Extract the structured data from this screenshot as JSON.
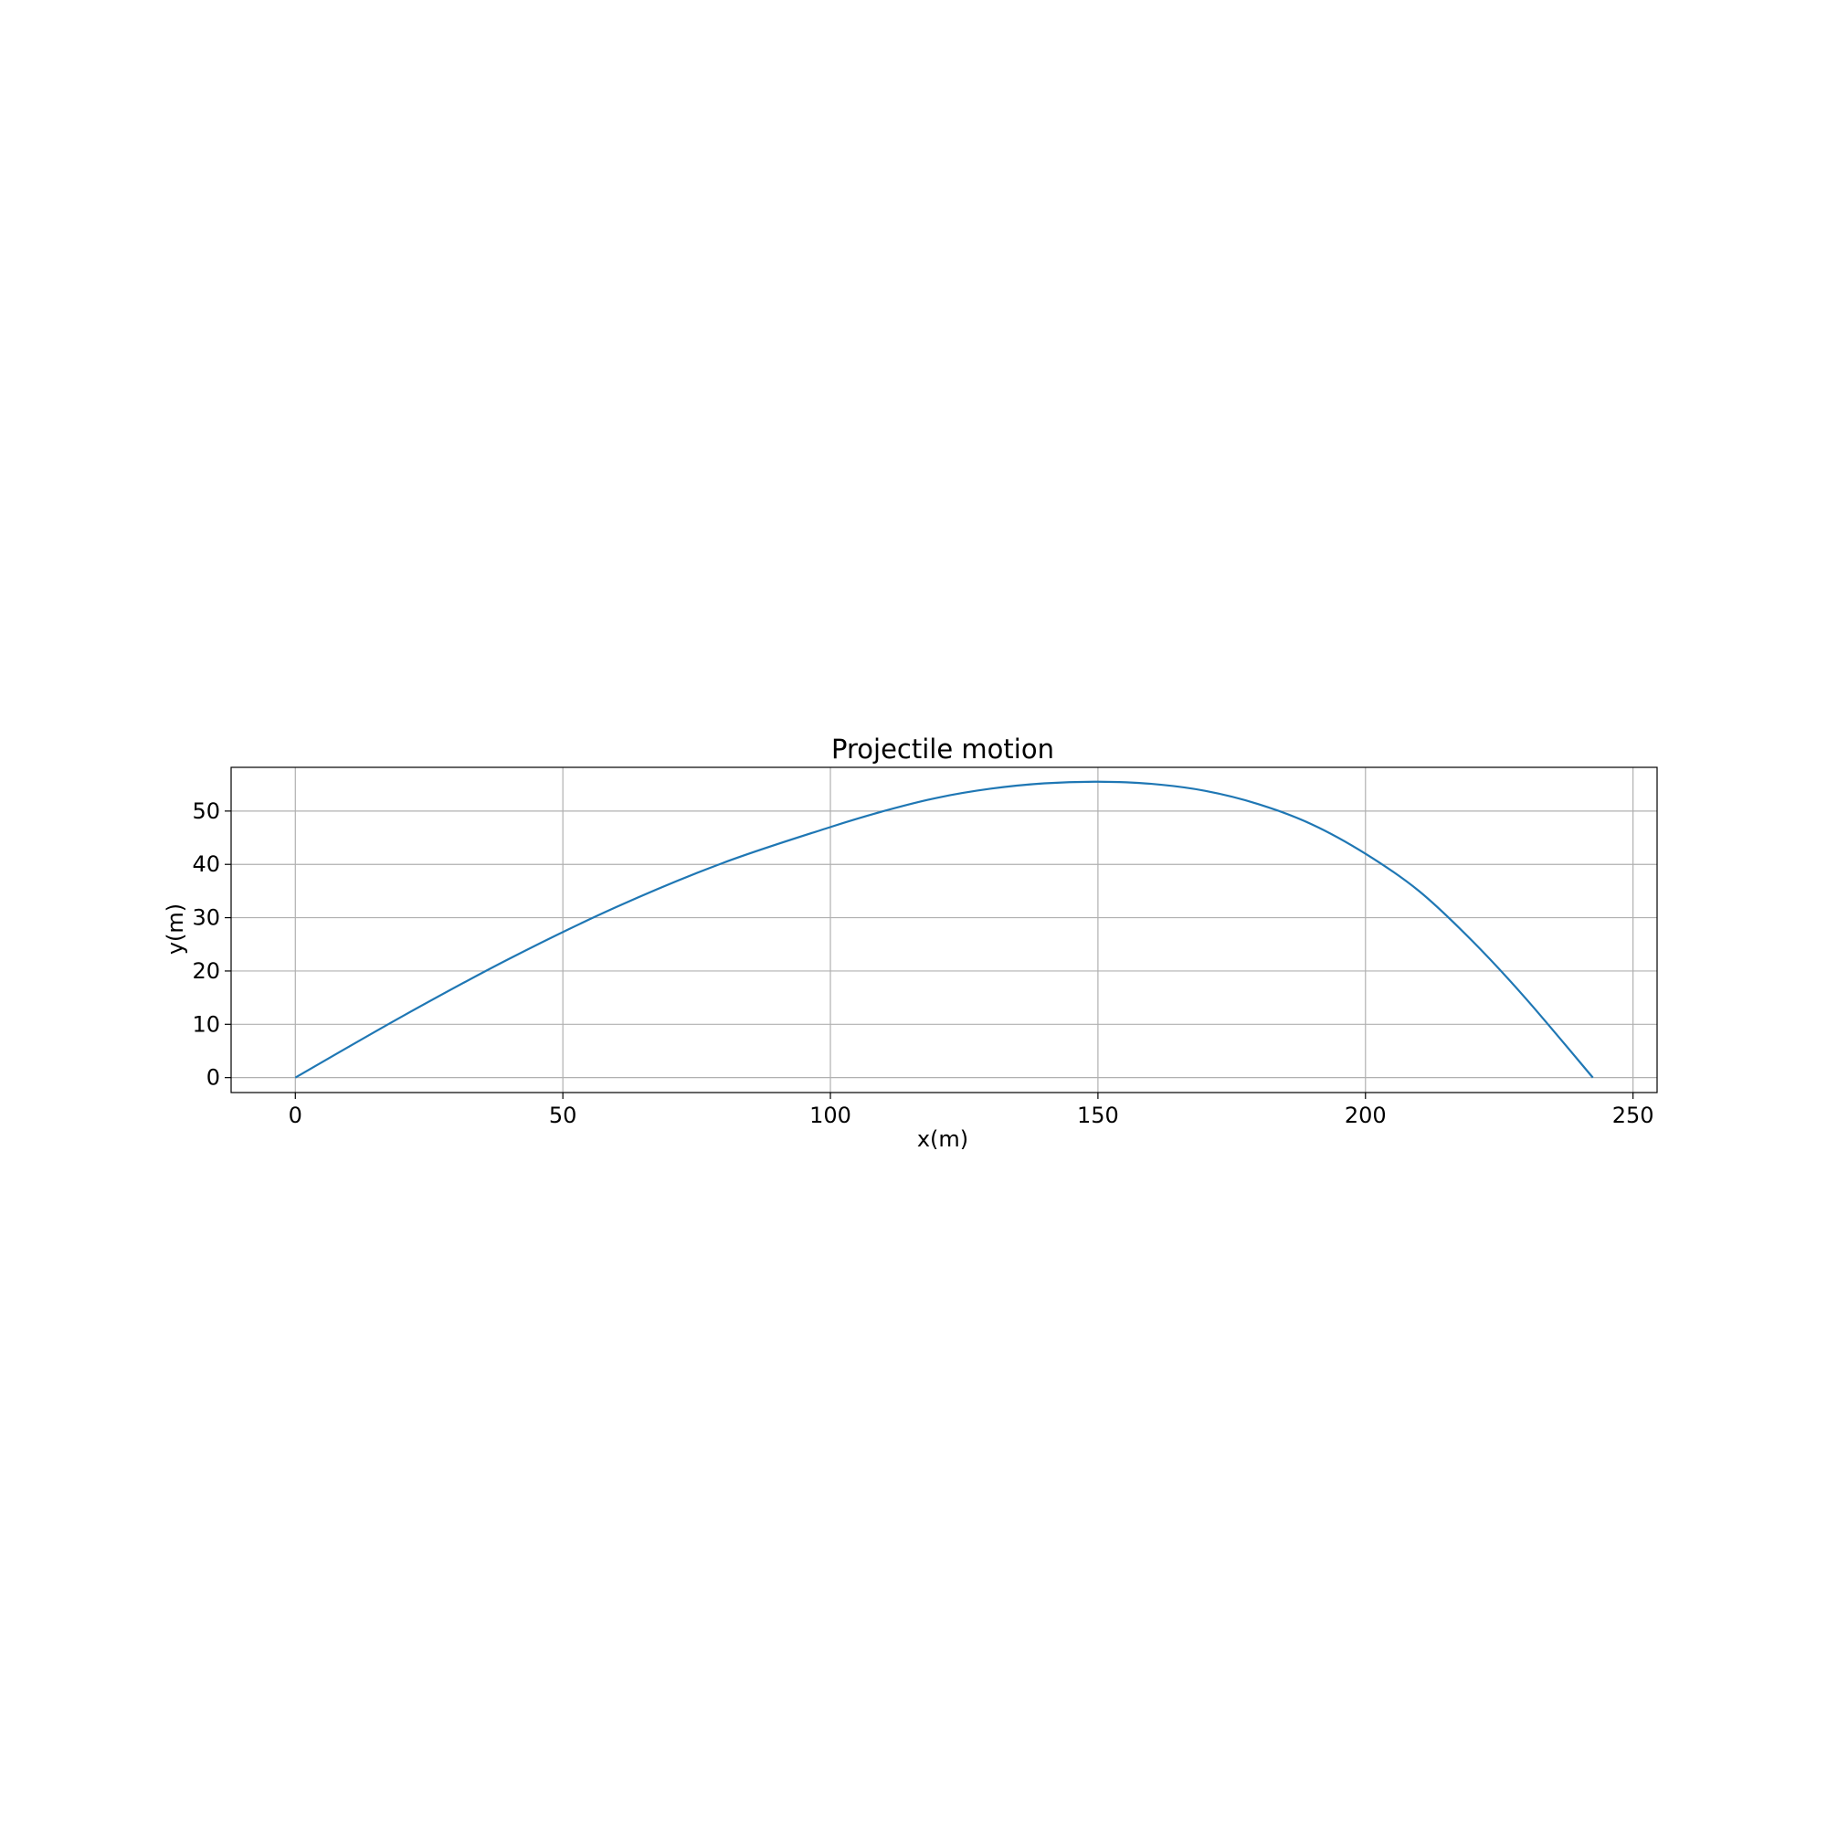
{
  "chart_data": {
    "type": "line",
    "title": "Projectile motion",
    "xlabel": "x(m)",
    "ylabel": "y(m)",
    "xlim": [
      -12,
      254.5
    ],
    "ylim": [
      -2.8,
      58.2
    ],
    "xticks": [
      0,
      50,
      100,
      150,
      200,
      250
    ],
    "yticks": [
      0,
      10,
      20,
      30,
      40,
      50
    ],
    "xtick_labels": [
      "0",
      "50",
      "100",
      "150",
      "200",
      "250"
    ],
    "ytick_labels": [
      "0",
      "10",
      "20",
      "30",
      "40",
      "50"
    ],
    "grid": true,
    "legend": "none",
    "series": [
      {
        "color": "#1f77b4",
        "x": [
          0,
          20,
          40,
          60,
          80,
          100,
          110,
          120,
          130,
          140,
          150,
          160,
          170,
          180,
          190,
          200,
          210,
          220,
          230,
          242.5
        ],
        "y": [
          0,
          11.5,
          22.3,
          32,
          40.3,
          47,
          50,
          52.5,
          54.2,
          55.2,
          55.5,
          55.1,
          53.8,
          51.3,
          47.5,
          42,
          35,
          25.6,
          14.8,
          0
        ]
      }
    ]
  }
}
